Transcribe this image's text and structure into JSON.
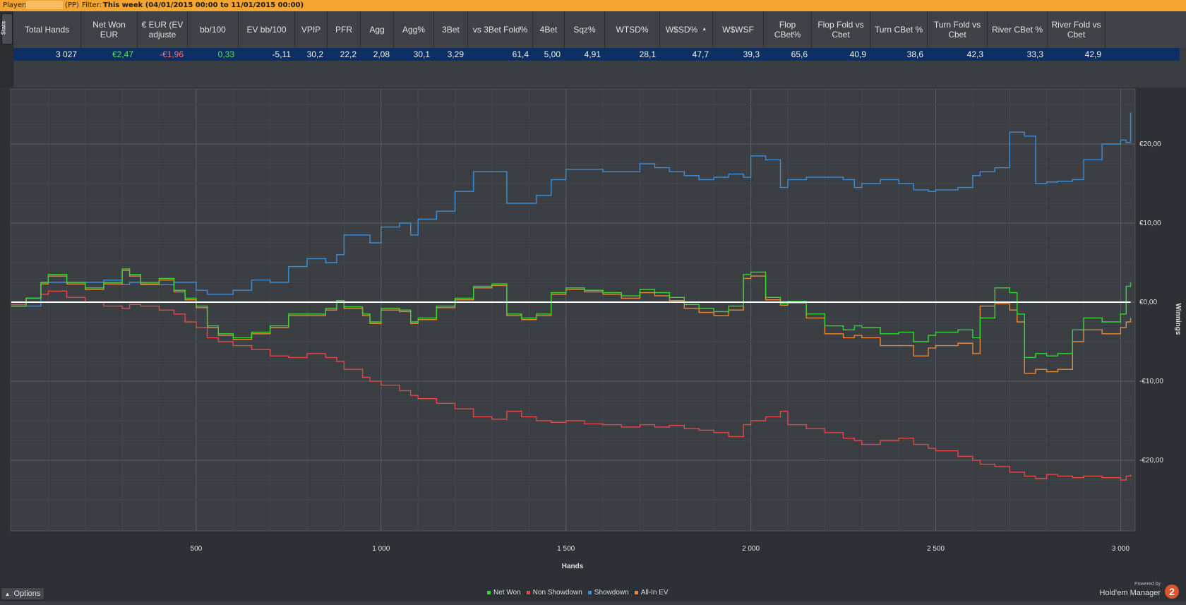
{
  "filter_bar": {
    "player_label": "Player:",
    "site_tag": "(PP)",
    "filter_label": "Filter:",
    "filter_value": "This week (04/01/2015 00:00 to 11/01/2015 00:00)"
  },
  "side_tab": {
    "label": "Stats"
  },
  "stats": {
    "columns": [
      {
        "label": "Total Hands",
        "value": "3 027",
        "color": "#f0f0f0"
      },
      {
        "label": "Net Won EUR",
        "value": "€2,47",
        "color": "#5ee05e"
      },
      {
        "label": "€ EUR (EV adjuste",
        "value": "-€1,96",
        "color": "#ff7070"
      },
      {
        "label": "bb/100",
        "value": "0,33",
        "color": "#5ee05e"
      },
      {
        "label": "EV bb/100",
        "value": "-5,11",
        "color": "#f0f0f0"
      },
      {
        "label": "VPIP",
        "value": "30,2",
        "color": "#f0f0f0"
      },
      {
        "label": "PFR",
        "value": "22,2",
        "color": "#f0f0f0"
      },
      {
        "label": "Agg",
        "value": "2,08",
        "color": "#f0f0f0"
      },
      {
        "label": "Agg%",
        "value": "30,1",
        "color": "#f0f0f0"
      },
      {
        "label": "3Bet",
        "value": "3,29",
        "color": "#f0f0f0"
      },
      {
        "label": "vs 3Bet Fold%",
        "value": "61,4",
        "color": "#f0f0f0"
      },
      {
        "label": "4Bet",
        "value": "5,00",
        "color": "#f0f0f0"
      },
      {
        "label": "Sqz%",
        "value": "4,91",
        "color": "#f0f0f0"
      },
      {
        "label": "WTSD%",
        "value": "28,1",
        "color": "#f0f0f0"
      },
      {
        "label": "W$SD%",
        "value": "47,7",
        "color": "#f0f0f0"
      },
      {
        "label": "W$WSF",
        "value": "39,3",
        "color": "#f0f0f0"
      },
      {
        "label": "Flop CBet%",
        "value": "65,6",
        "color": "#f0f0f0"
      },
      {
        "label": "Flop Fold vs Cbet",
        "value": "40,9",
        "color": "#f0f0f0"
      },
      {
        "label": "Turn CBet %",
        "value": "38,6",
        "color": "#f0f0f0"
      },
      {
        "label": "Turn Fold vs Cbet",
        "value": "42,3",
        "color": "#f0f0f0"
      },
      {
        "label": "River CBet %",
        "value": "33,3",
        "color": "#f0f0f0"
      },
      {
        "label": "River Fold vs Cbet",
        "value": "42,9",
        "color": "#f0f0f0"
      }
    ]
  },
  "chart_data": {
    "type": "line",
    "xlabel": "Hands",
    "ylabel": "Winnings",
    "xlim": [
      0,
      3027
    ],
    "ylim": [
      -27,
      29
    ],
    "x_ticks": [
      {
        "value": 500,
        "label": "500"
      },
      {
        "value": 1000,
        "label": "1 000"
      },
      {
        "value": 1500,
        "label": "1 500"
      },
      {
        "value": 2000,
        "label": "2 000"
      },
      {
        "value": 2500,
        "label": "2 500"
      },
      {
        "value": 3000,
        "label": "3 000"
      }
    ],
    "y_ticks": [
      {
        "value": 20,
        "label": "€20,00"
      },
      {
        "value": 10,
        "label": "€10,00"
      },
      {
        "value": 0,
        "label": "€0,00"
      },
      {
        "value": -10,
        "label": "-€10,00"
      },
      {
        "value": -20,
        "label": "-€20,00"
      }
    ],
    "grid": true,
    "legend_position": "bottom",
    "series": [
      {
        "name": "Net Won",
        "color": "#37d637",
        "x": [
          0,
          40,
          80,
          100,
          150,
          200,
          250,
          300,
          320,
          350,
          400,
          440,
          470,
          500,
          530,
          560,
          600,
          650,
          700,
          750,
          800,
          850,
          880,
          900,
          950,
          970,
          1000,
          1050,
          1080,
          1100,
          1150,
          1200,
          1250,
          1300,
          1340,
          1380,
          1420,
          1460,
          1500,
          1550,
          1600,
          1650,
          1700,
          1740,
          1780,
          1820,
          1860,
          1900,
          1940,
          1980,
          2000,
          2040,
          2080,
          2100,
          2150,
          2200,
          2250,
          2280,
          2300,
          2350,
          2400,
          2440,
          2480,
          2500,
          2560,
          2600,
          2620,
          2660,
          2700,
          2720,
          2740,
          2770,
          2800,
          2830,
          2870,
          2900,
          2950,
          3000,
          3015,
          3027
        ],
        "y": [
          -0.5,
          0.5,
          2.5,
          3.5,
          2.5,
          1.8,
          2.5,
          4.2,
          3.5,
          2.5,
          3.0,
          1.5,
          0.5,
          -0.5,
          -3.0,
          -4.0,
          -4.5,
          -3.8,
          -3.0,
          -1.5,
          -1.5,
          -0.8,
          0.2,
          -0.6,
          -1.5,
          -2.5,
          -0.8,
          -1.0,
          -2.5,
          -2.0,
          -0.5,
          0.5,
          2.0,
          2.3,
          -1.5,
          -2.0,
          -1.5,
          1.2,
          1.8,
          1.5,
          1.2,
          0.8,
          1.6,
          1.2,
          0.6,
          -0.3,
          -0.8,
          -1.2,
          -0.5,
          3.5,
          3.8,
          0.6,
          -0.2,
          0.1,
          -1.5,
          -3.0,
          -3.5,
          -3.0,
          -3.2,
          -4.0,
          -3.8,
          -5.0,
          -4.2,
          -3.8,
          -3.5,
          -4.5,
          -2.0,
          1.8,
          1.2,
          -1.5,
          -7.0,
          -6.5,
          -6.8,
          -6.5,
          -3.5,
          -2.0,
          -2.5,
          -1.5,
          2.0,
          2.5
        ]
      },
      {
        "name": "Non Showdown",
        "color": "#e04a4a",
        "x": [
          0,
          40,
          80,
          100,
          150,
          200,
          250,
          300,
          320,
          350,
          400,
          440,
          470,
          500,
          530,
          560,
          600,
          650,
          700,
          750,
          800,
          850,
          880,
          900,
          950,
          970,
          1000,
          1050,
          1080,
          1100,
          1150,
          1200,
          1250,
          1300,
          1340,
          1380,
          1420,
          1460,
          1500,
          1550,
          1600,
          1650,
          1700,
          1740,
          1780,
          1820,
          1860,
          1900,
          1940,
          1980,
          2000,
          2040,
          2080,
          2100,
          2150,
          2200,
          2250,
          2280,
          2300,
          2350,
          2400,
          2440,
          2480,
          2500,
          2560,
          2600,
          2620,
          2660,
          2700,
          2720,
          2740,
          2770,
          2800,
          2830,
          2870,
          2900,
          2950,
          3000,
          3015,
          3027
        ],
        "y": [
          -0.3,
          0.5,
          1.0,
          1.4,
          0.6,
          0.0,
          -0.5,
          -0.8,
          -0.3,
          -0.5,
          -1.0,
          -1.5,
          -2.5,
          -3.2,
          -4.5,
          -5.0,
          -5.5,
          -6.0,
          -6.8,
          -7.0,
          -6.5,
          -7.0,
          -7.5,
          -8.5,
          -9.5,
          -10.0,
          -10.5,
          -11.2,
          -11.8,
          -12.2,
          -12.8,
          -13.5,
          -14.5,
          -14.8,
          -13.8,
          -14.5,
          -15.0,
          -15.2,
          -15.0,
          -15.4,
          -15.5,
          -15.8,
          -15.5,
          -15.8,
          -15.6,
          -16.0,
          -16.2,
          -16.5,
          -17.0,
          -15.5,
          -15.0,
          -14.5,
          -13.8,
          -15.5,
          -16.0,
          -16.5,
          -17.2,
          -17.5,
          -18.0,
          -17.5,
          -17.2,
          -18.0,
          -18.5,
          -18.8,
          -19.5,
          -20.0,
          -20.5,
          -20.8,
          -21.5,
          -21.5,
          -22.0,
          -22.3,
          -21.8,
          -22.0,
          -22.2,
          -22.0,
          -22.2,
          -22.5,
          -22.0,
          -21.8
        ]
      },
      {
        "name": "Showdown",
        "color": "#3d8fd8",
        "x": [
          0,
          40,
          80,
          100,
          150,
          200,
          250,
          300,
          320,
          350,
          400,
          440,
          470,
          500,
          530,
          560,
          600,
          650,
          700,
          750,
          800,
          850,
          880,
          900,
          950,
          970,
          1000,
          1050,
          1080,
          1100,
          1150,
          1200,
          1250,
          1300,
          1340,
          1380,
          1420,
          1460,
          1500,
          1550,
          1600,
          1650,
          1700,
          1740,
          1780,
          1820,
          1860,
          1900,
          1940,
          1980,
          2000,
          2040,
          2080,
          2100,
          2150,
          2200,
          2250,
          2280,
          2300,
          2350,
          2400,
          2440,
          2480,
          2500,
          2560,
          2600,
          2620,
          2660,
          2700,
          2720,
          2740,
          2770,
          2800,
          2830,
          2870,
          2900,
          2950,
          3000,
          3015,
          3027
        ],
        "y": [
          -0.5,
          -0.5,
          2.5,
          2.5,
          2.5,
          2.5,
          2.8,
          2.2,
          2.5,
          2.2,
          2.2,
          2.5,
          2.5,
          1.5,
          1.0,
          1.0,
          1.5,
          2.8,
          2.5,
          4.5,
          5.5,
          5.0,
          6.0,
          8.5,
          8.5,
          7.5,
          9.5,
          10.0,
          8.5,
          10.5,
          11.5,
          14.0,
          16.5,
          16.5,
          12.5,
          12.5,
          13.5,
          15.5,
          16.8,
          16.8,
          16.5,
          16.5,
          17.5,
          17.0,
          16.5,
          16.0,
          15.5,
          15.8,
          16.2,
          15.8,
          18.5,
          18.0,
          14.5,
          15.5,
          15.8,
          15.8,
          15.5,
          14.5,
          15.0,
          15.5,
          15.0,
          14.2,
          14.0,
          14.2,
          14.5,
          16.0,
          16.5,
          17.0,
          21.5,
          21.5,
          21.0,
          15.0,
          15.2,
          15.3,
          15.5,
          18.0,
          20.0,
          20.5,
          20.2,
          24.0
        ]
      },
      {
        "name": "All-In EV",
        "color": "#e8893a",
        "x": [
          0,
          40,
          80,
          100,
          150,
          200,
          250,
          300,
          320,
          350,
          400,
          440,
          470,
          500,
          530,
          560,
          600,
          650,
          700,
          750,
          800,
          850,
          880,
          900,
          950,
          970,
          1000,
          1050,
          1080,
          1100,
          1150,
          1200,
          1250,
          1300,
          1340,
          1380,
          1420,
          1460,
          1500,
          1550,
          1600,
          1650,
          1700,
          1740,
          1780,
          1820,
          1860,
          1900,
          1940,
          1980,
          2000,
          2040,
          2080,
          2100,
          2150,
          2200,
          2250,
          2280,
          2300,
          2350,
          2400,
          2440,
          2480,
          2500,
          2560,
          2600,
          2620,
          2660,
          2700,
          2720,
          2740,
          2770,
          2800,
          2830,
          2870,
          2900,
          2950,
          3000,
          3015,
          3027
        ],
        "y": [
          -0.5,
          0.5,
          2.3,
          3.3,
          2.3,
          1.6,
          2.3,
          4.0,
          3.3,
          2.3,
          2.8,
          1.3,
          0.3,
          -0.7,
          -3.2,
          -4.2,
          -4.7,
          -4.0,
          -3.2,
          -1.7,
          -1.7,
          -1.0,
          0.0,
          -0.8,
          -1.7,
          -2.7,
          -1.0,
          -1.2,
          -2.7,
          -2.2,
          -0.7,
          0.3,
          1.8,
          2.1,
          -1.7,
          -2.2,
          -1.7,
          1.0,
          1.6,
          1.3,
          1.0,
          0.5,
          1.2,
          0.8,
          0.2,
          -0.8,
          -1.3,
          -1.7,
          -1.0,
          3.0,
          3.3,
          0.3,
          -0.4,
          -0.1,
          -2.0,
          -4.0,
          -4.5,
          -4.2,
          -4.5,
          -5.5,
          -5.5,
          -6.8,
          -5.8,
          -5.5,
          -5.2,
          -6.5,
          -0.5,
          -0.2,
          -1.0,
          -2.5,
          -9.0,
          -8.5,
          -8.8,
          -8.5,
          -5.0,
          -3.5,
          -4.0,
          -3.2,
          -2.5,
          -2.0
        ]
      },
      {
        "name": "",
        "color": "#ffffff",
        "x": [
          0,
          3027
        ],
        "y": [
          0,
          0
        ]
      }
    ]
  },
  "footer": {
    "options_label": "Options",
    "powered_by": "Powered by",
    "brand": "Hold'em Manager",
    "badge": "2"
  }
}
